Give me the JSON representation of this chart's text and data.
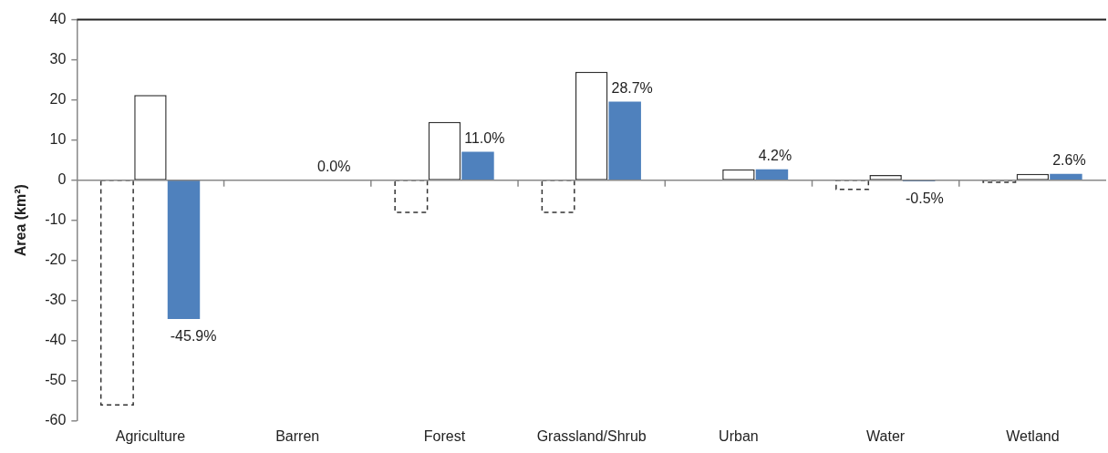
{
  "chart_data": {
    "type": "bar",
    "ylabel": "Area (km²)",
    "categories": [
      "Agriculture",
      "Barren",
      "Forest",
      "Grassland/Shrub",
      "Urban",
      "Water",
      "Wetland"
    ],
    "series": [
      {
        "color": "#ffffff",
        "line_style": "dashed",
        "values": [
          -56,
          0,
          -8,
          -8,
          0,
          -2.3,
          -0.5
        ]
      },
      {
        "color": "#ffffff",
        "line_style": "solid",
        "values": [
          21.2,
          0,
          14.5,
          27,
          2.7,
          1.3,
          1.6
        ]
      },
      {
        "color": "#4f81bd",
        "values": [
          -34.6,
          0,
          7.1,
          19.6,
          2.7,
          -0.3,
          1.6
        ]
      }
    ],
    "annotations": [
      "-45.9%",
      "0.0%",
      "11.0%",
      "28.7%",
      "4.2%",
      "-0.5%",
      "2.6%"
    ],
    "ylim": [
      -60,
      40
    ],
    "yticks": [
      -60,
      -50,
      -40,
      -30,
      -20,
      -10,
      0,
      10,
      20,
      30,
      40
    ],
    "legend": false
  }
}
